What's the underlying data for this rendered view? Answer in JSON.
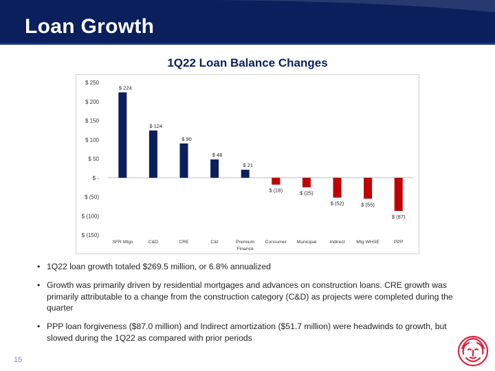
{
  "slide": {
    "title": "Loan Growth",
    "page_number": "15"
  },
  "colors": {
    "header": "#0a1f5c",
    "positive_bar": "#0a1f5c",
    "negative_bar": "#c00000",
    "logo": "#d9233f"
  },
  "icons": {
    "logo": "lion-head-logo"
  },
  "chart_data": {
    "type": "bar",
    "title": "1Q22 Loan Balance Changes",
    "xlabel": "",
    "ylabel": "",
    "categories": [
      "SFR Mtgs",
      "C&D",
      "CRE",
      "C&I",
      "Premium Finance",
      "Consumer",
      "Municipal",
      "Indirect",
      "Mtg WHSE",
      "PPP"
    ],
    "values": [
      224,
      124,
      90,
      48,
      21,
      -18,
      -25,
      -52,
      -55,
      -87
    ],
    "data_labels": [
      "$ 224",
      "$ 124",
      "$ 90",
      "$ 48",
      "$ 21",
      "$ (18)",
      "$ (25)",
      "$ (52)",
      "$ (55)",
      "$ (87)"
    ],
    "ylim": [
      -150,
      250
    ],
    "yticks": [
      250,
      200,
      150,
      100,
      50,
      0,
      -50,
      -100,
      -150
    ],
    "ytick_labels": [
      "$ 250",
      "$ 200",
      "$ 150",
      "$ 100",
      "$ 50",
      "$ -",
      "$ (50)",
      "$ (100)",
      "$ (150)"
    ],
    "grid": false,
    "legend": "none"
  },
  "bullets": [
    "1Q22 loan growth totaled $269.5 million, or 6.8% annualized",
    "Growth was primarily driven by residential mortgages and advances on construction loans.  CRE growth was primarily attributable to a change from the construction category (C&D) as projects were completed during the quarter",
    "PPP loan forgiveness ($87.0 million) and Indirect amortization ($51.7 million) were headwinds to growth, but slowed during the 1Q22 as compared with prior periods"
  ]
}
